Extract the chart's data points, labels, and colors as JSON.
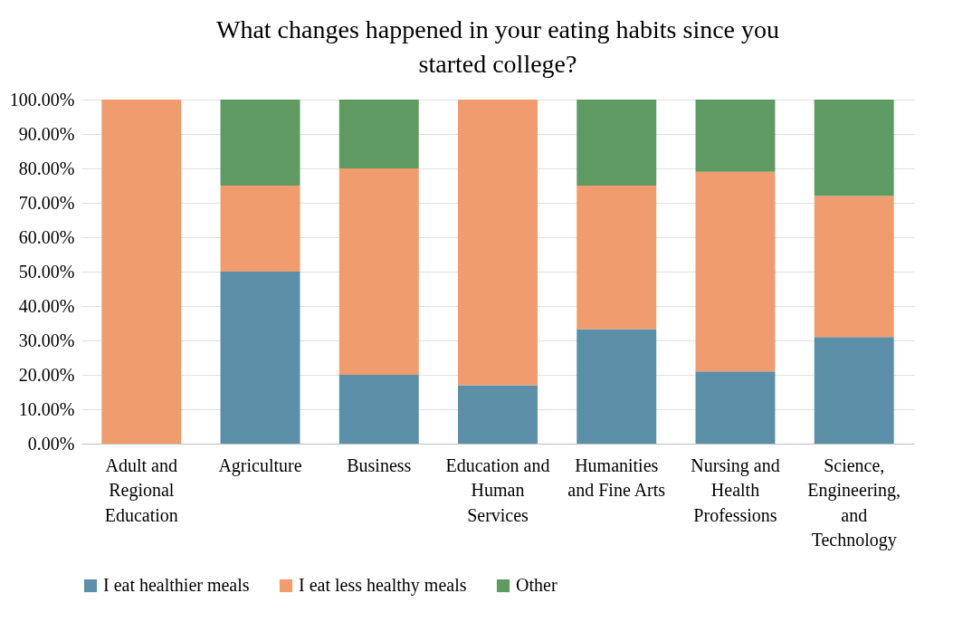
{
  "chart_data": {
    "type": "bar",
    "title": "What changes happened in your eating habits since you started college?",
    "stacked": true,
    "grid": "y",
    "legend": "bottom",
    "categories": [
      "Adult and Regional Education",
      "Agriculture",
      "Business",
      "Education and Human Services",
      "Humanities and Fine Arts",
      "Nursing and Health Professions",
      "Science, Engineering, and Technology"
    ],
    "series": [
      {
        "name": "I eat healthier meals",
        "color": "#5b8fa8",
        "values": [
          0,
          50,
          20,
          17,
          33.3,
          21,
          31
        ]
      },
      {
        "name": "I eat less healthy meals",
        "color": "#f09c6e",
        "values": [
          100,
          25,
          60,
          83,
          41.7,
          58,
          41
        ]
      },
      {
        "name": "Other",
        "color": "#5f9a62",
        "values": [
          0,
          25,
          20,
          0,
          25,
          21,
          28
        ]
      }
    ],
    "ylim": [
      0,
      100
    ],
    "yticks": [
      {
        "value": 0,
        "label": "0.00%"
      },
      {
        "value": 10,
        "label": "10.00%"
      },
      {
        "value": 20,
        "label": "20.00%"
      },
      {
        "value": 30,
        "label": "30.00%"
      },
      {
        "value": 40,
        "label": "40.00%"
      },
      {
        "value": 50,
        "label": "50.00%"
      },
      {
        "value": 60,
        "label": "60.00%"
      },
      {
        "value": 70,
        "label": "70.00%"
      },
      {
        "value": 80,
        "label": "80.00%"
      },
      {
        "value": 90,
        "label": "90.00%"
      },
      {
        "value": 100,
        "label": "100.00%"
      }
    ]
  }
}
